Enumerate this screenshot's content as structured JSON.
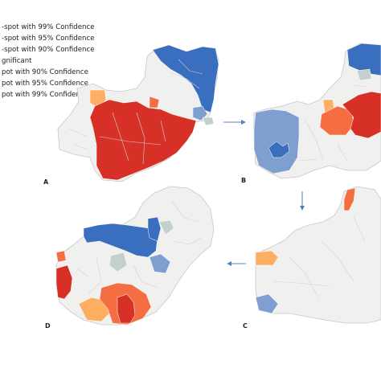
{
  "legend": {
    "items": [
      {
        "label": "-spot with 99% Confidence",
        "color": "#d73027"
      },
      {
        "label": "-spot with 95% Confidence",
        "color": "#f46d43"
      },
      {
        "label": "-spot with 90% Confidence",
        "color": "#fdae61"
      },
      {
        "label": "gnificant",
        "color": "#f0f0ee"
      },
      {
        "label": "pot with 90% Confidence",
        "color": "#c2d1cb"
      },
      {
        "label": "pot with 95% Confidence",
        "color": "#7e9fcf"
      },
      {
        "label": "pot with 99% Confidence",
        "color": "#3a6ebf"
      }
    ]
  },
  "panels": {
    "a": {
      "label": "A"
    },
    "b": {
      "label": "B"
    },
    "c": {
      "label": "C"
    },
    "d": {
      "label": "D"
    }
  },
  "colors": {
    "base": "#f0f0ee",
    "border": "#c8c8c8",
    "hot99": "#d73027",
    "hot95": "#f46d43",
    "hot90": "#fdae61",
    "cold90": "#c2d1cb",
    "cold95": "#7e9fcf",
    "cold99": "#3a6ebf",
    "arrow": "#5b7fb5"
  }
}
